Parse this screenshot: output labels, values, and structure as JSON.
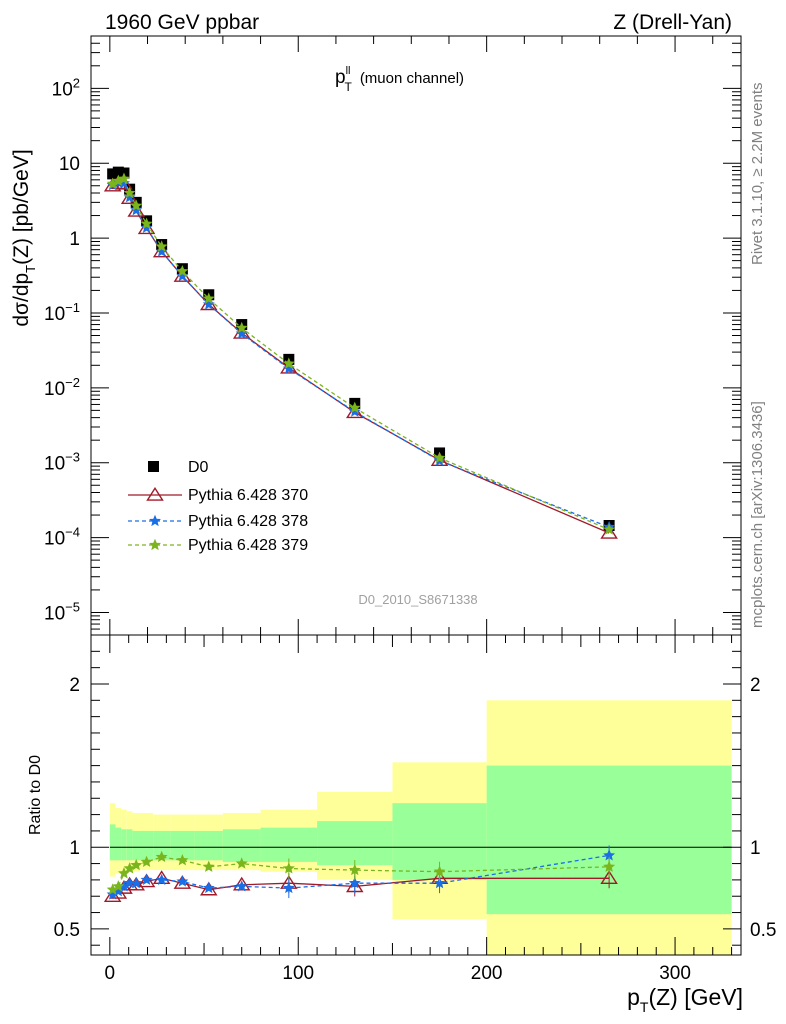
{
  "header": {
    "left": "1960 GeV ppbar",
    "right": "Z (Drell-Yan)"
  },
  "side_labels": {
    "rivet": "Rivet 3.1.10, ≥ 2.2M events",
    "mcplots": "mcplots.cern.ch [arXiv:1306.3436]"
  },
  "analysis_id": "D0_2010_S8671338",
  "colors": {
    "data": "#000000",
    "py370": "#a01a2a",
    "py378": "#1a6ee6",
    "py379": "#7ab51d",
    "band_outer": "#ffff99",
    "band_inner": "#99ff99"
  },
  "chart_data": [
    {
      "type": "line",
      "title": "p_T^ll (muon channel)",
      "title_main": "p",
      "title_sub": "T",
      "title_sup": "ll",
      "title_suffix": "(muon channel)",
      "ylabel_parts": [
        "dσ/dp",
        "T",
        "(Z) [pb/GeV]"
      ],
      "y_scale": "log",
      "ylim": [
        5e-06,
        500
      ],
      "xlim": [
        -10,
        335
      ],
      "y_tick_labels": [
        {
          "v": 100,
          "base": "10",
          "exp": "2"
        },
        {
          "v": 10,
          "base": "10",
          "exp": ""
        },
        {
          "v": 1,
          "base": "1",
          "exp": ""
        },
        {
          "v": 0.1,
          "base": "10",
          "exp": "−1"
        },
        {
          "v": 0.01,
          "base": "10",
          "exp": "−2"
        },
        {
          "v": 0.001,
          "base": "10",
          "exp": "−3"
        },
        {
          "v": 0.0001,
          "base": "10",
          "exp": "−4"
        },
        {
          "v": 1e-05,
          "base": "10",
          "exp": "−5"
        }
      ],
      "x": [
        1.5,
        4.5,
        7.5,
        10.5,
        14,
        19.5,
        27.5,
        38.5,
        52.5,
        70,
        95,
        130,
        175,
        265
      ],
      "series": [
        {
          "name": "D0",
          "values": [
            7.2,
            7.6,
            7.4,
            4.5,
            3.0,
            1.7,
            0.82,
            0.39,
            0.175,
            0.07,
            0.024,
            0.0062,
            0.00135,
            0.000145
          ]
        },
        {
          "name": "Pythia 6.428 370",
          "values": [
            5.0,
            5.4,
            5.3,
            3.4,
            2.3,
            1.35,
            0.66,
            0.31,
            0.13,
            0.054,
            0.0185,
            0.0047,
            0.00108,
            0.000115
          ]
        },
        {
          "name": "Pythia 6.428 378",
          "values": [
            5.1,
            5.5,
            5.4,
            3.5,
            2.35,
            1.37,
            0.66,
            0.31,
            0.13,
            0.053,
            0.018,
            0.0048,
            0.00106,
            0.000138
          ]
        },
        {
          "name": "Pythia 6.428 379",
          "values": [
            5.3,
            5.8,
            6.2,
            4.0,
            2.7,
            1.55,
            0.77,
            0.36,
            0.155,
            0.063,
            0.021,
            0.0054,
            0.00116,
            0.000128
          ]
        }
      ],
      "legend": [
        "D0",
        "Pythia 6.428 370",
        "Pythia 6.428 378",
        "Pythia 6.428 379"
      ]
    },
    {
      "type": "line",
      "ylabel": "Ratio to D0",
      "xlabel_parts": [
        "p",
        "T",
        "(Z) [GeV]"
      ],
      "ylim": [
        0.34,
        2.3
      ],
      "xlim": [
        -10,
        335
      ],
      "y_tick_labels": [
        {
          "v": 2,
          "label": "2"
        },
        {
          "v": 1,
          "label": "1"
        },
        {
          "v": 0.5,
          "label": "0.5"
        }
      ],
      "x_tick_labels": [
        {
          "v": 0,
          "label": "0"
        },
        {
          "v": 100,
          "label": "100"
        },
        {
          "v": 200,
          "label": "200"
        },
        {
          "v": 300,
          "label": "300"
        }
      ],
      "bins": [
        [
          0,
          3
        ],
        [
          3,
          6
        ],
        [
          6,
          9
        ],
        [
          9,
          12
        ],
        [
          12,
          16
        ],
        [
          16,
          23
        ],
        [
          23,
          32
        ],
        [
          32,
          45
        ],
        [
          45,
          60
        ],
        [
          60,
          80
        ],
        [
          80,
          110
        ],
        [
          110,
          150
        ],
        [
          150,
          200
        ],
        [
          200,
          330
        ]
      ],
      "band_outer": [
        [
          0.82,
          1.27
        ],
        [
          0.84,
          1.24
        ],
        [
          0.85,
          1.23
        ],
        [
          0.85,
          1.22
        ],
        [
          0.85,
          1.21
        ],
        [
          0.86,
          1.21
        ],
        [
          0.86,
          1.2
        ],
        [
          0.86,
          1.2
        ],
        [
          0.86,
          1.2
        ],
        [
          0.86,
          1.21
        ],
        [
          0.85,
          1.23
        ],
        [
          0.8,
          1.34
        ],
        [
          0.56,
          1.52
        ],
        [
          0.34,
          1.9
        ]
      ],
      "band_inner": [
        [
          0.92,
          1.14
        ],
        [
          0.92,
          1.12
        ],
        [
          0.92,
          1.11
        ],
        [
          0.92,
          1.11
        ],
        [
          0.92,
          1.1
        ],
        [
          0.92,
          1.1
        ],
        [
          0.92,
          1.1
        ],
        [
          0.92,
          1.1
        ],
        [
          0.92,
          1.1
        ],
        [
          0.91,
          1.11
        ],
        [
          0.91,
          1.12
        ],
        [
          0.89,
          1.16
        ],
        [
          0.8,
          1.27
        ],
        [
          0.59,
          1.5
        ]
      ],
      "x": [
        1.5,
        4.5,
        7.5,
        10.5,
        14,
        19.5,
        27.5,
        38.5,
        52.5,
        70,
        95,
        130,
        175,
        265
      ],
      "series": [
        {
          "name": "Pythia 6.428 370",
          "values": [
            0.7,
            0.72,
            0.75,
            0.77,
            0.77,
            0.79,
            0.81,
            0.78,
            0.74,
            0.77,
            0.78,
            0.76,
            0.81,
            0.81
          ]
        },
        {
          "name": "Pythia 6.428 378",
          "values": [
            0.71,
            0.73,
            0.76,
            0.78,
            0.78,
            0.8,
            0.8,
            0.79,
            0.75,
            0.76,
            0.75,
            0.78,
            0.78,
            0.95
          ]
        },
        {
          "name": "Pythia 6.428 379",
          "values": [
            0.74,
            0.76,
            0.84,
            0.87,
            0.89,
            0.91,
            0.94,
            0.92,
            0.88,
            0.9,
            0.87,
            0.86,
            0.85,
            0.88
          ]
        }
      ]
    }
  ]
}
